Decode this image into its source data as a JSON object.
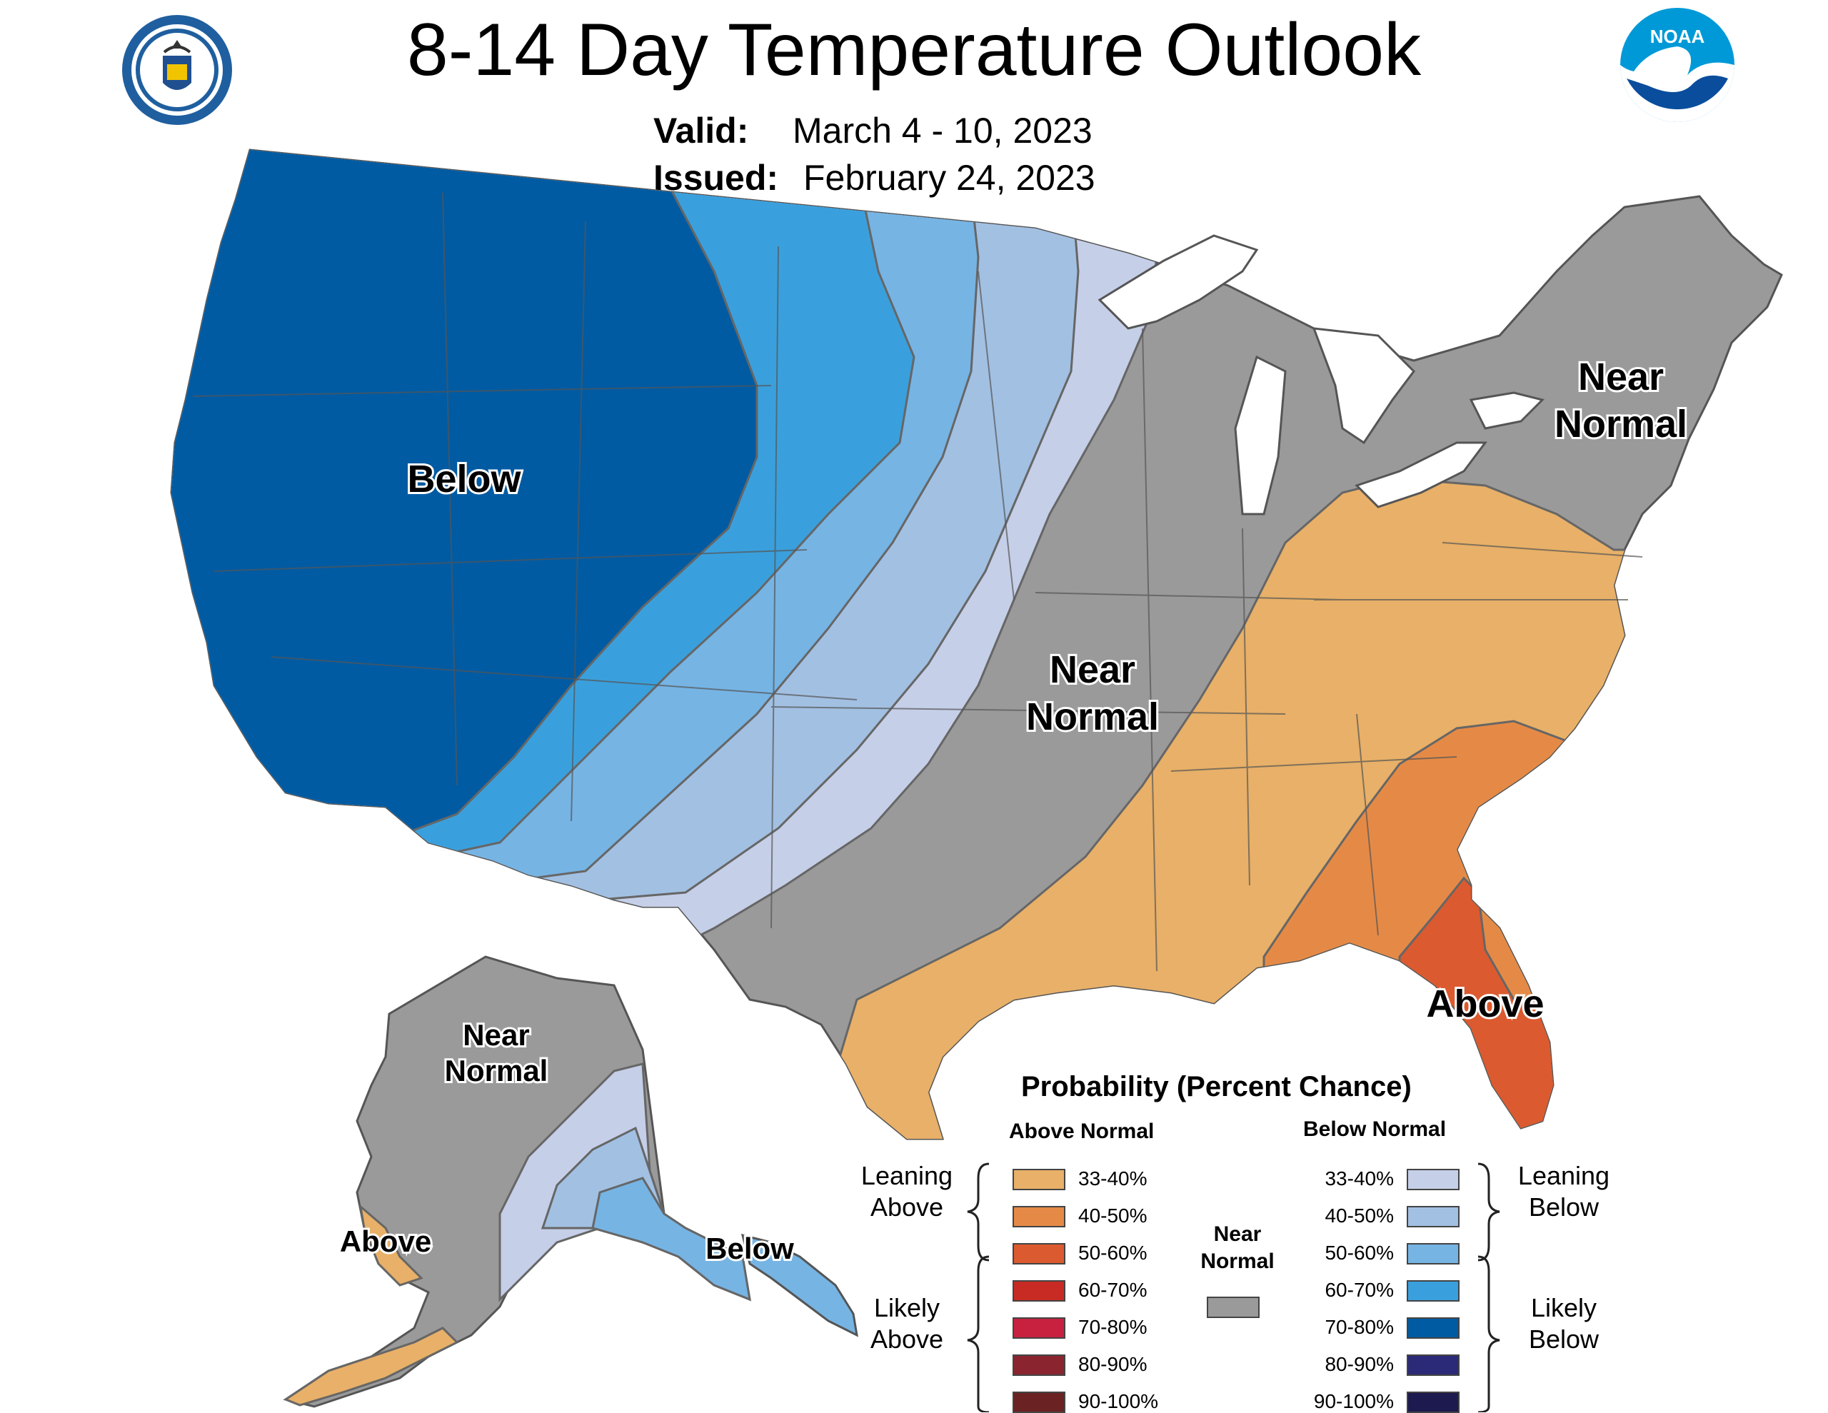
{
  "header": {
    "title": "8-14 Day Temperature Outlook",
    "valid_label": "Valid:",
    "valid_value": "March 4 - 10, 2023",
    "issued_label": "Issued:",
    "issued_value": "February 24, 2023",
    "left_logo": "department-of-commerce-seal",
    "right_logo": "noaa-logo",
    "noaa_text": "NOAA"
  },
  "map_labels": {
    "west": "Below",
    "central_line1": "Near",
    "central_line2": "Normal",
    "northeast_line1": "Near",
    "northeast_line2": "Normal",
    "southeast": "Above",
    "alaska_north_line1": "Near",
    "alaska_north_line2": "Normal",
    "alaska_southwest": "Above",
    "alaska_southeast": "Below"
  },
  "legend": {
    "title": "Probability (Percent Chance)",
    "above_header": "Above Normal",
    "below_header": "Below Normal",
    "near_header_line1": "Near",
    "near_header_line2": "Normal",
    "leaning_above_line1": "Leaning",
    "leaning_above_line2": "Above",
    "likely_above_line1": "Likely",
    "likely_above_line2": "Above",
    "leaning_below_line1": "Leaning",
    "leaning_below_line2": "Below",
    "likely_below_line1": "Likely",
    "likely_below_line2": "Below",
    "above": [
      {
        "range": "33-40%",
        "color": "#e8b068"
      },
      {
        "range": "40-50%",
        "color": "#e58a46"
      },
      {
        "range": "50-60%",
        "color": "#dc5a2f"
      },
      {
        "range": "60-70%",
        "color": "#c82b24"
      },
      {
        "range": "70-80%",
        "color": "#c7213f"
      },
      {
        "range": "80-90%",
        "color": "#8a2530"
      },
      {
        "range": "90-100%",
        "color": "#6b2222"
      }
    ],
    "below": [
      {
        "range": "33-40%",
        "color": "#c6cfe8"
      },
      {
        "range": "40-50%",
        "color": "#a2c0e2"
      },
      {
        "range": "50-60%",
        "color": "#76b4e4"
      },
      {
        "range": "60-70%",
        "color": "#3aa0dd"
      },
      {
        "range": "70-80%",
        "color": "#005ba3"
      },
      {
        "range": "80-90%",
        "color": "#2b2a78"
      },
      {
        "range": "90-100%",
        "color": "#1c1a4e"
      }
    ],
    "near_color": "#9a9a9a"
  }
}
